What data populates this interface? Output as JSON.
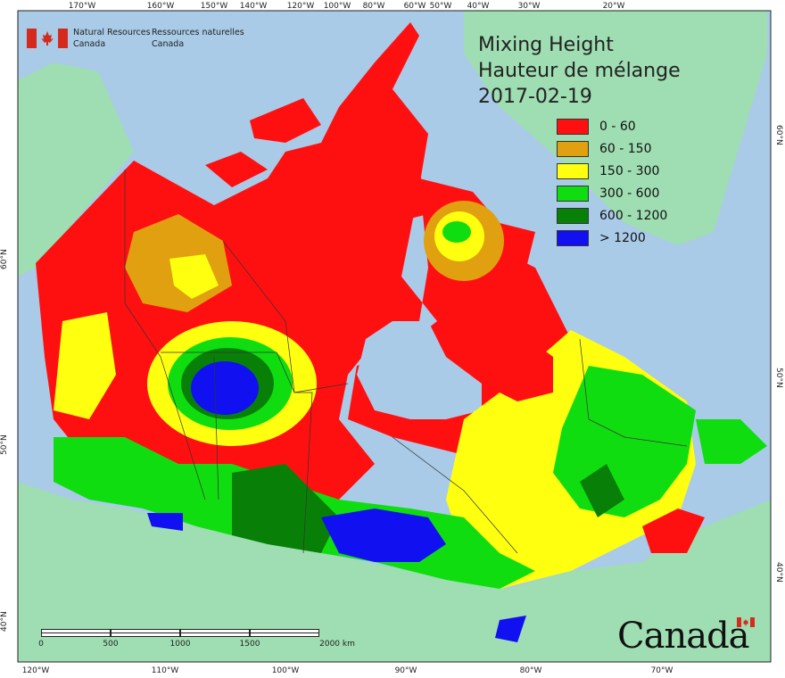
{
  "map": {
    "title_lines": [
      "Mixing Height",
      "Hauteur de mélange",
      "2017-02-19"
    ],
    "agency": {
      "english": [
        "Natural Resources",
        "Canada"
      ],
      "french": [
        "Ressources naturelles",
        "Canada"
      ]
    },
    "wordmark": "Canada",
    "legend": [
      {
        "label": "0 - 60",
        "color": "#ff1010"
      },
      {
        "label": "60 - 150",
        "color": "#e0a010"
      },
      {
        "label": "150 - 300",
        "color": "#ffff10"
      },
      {
        "label": "300 - 600",
        "color": "#10dd10"
      },
      {
        "label": "600 - 1200",
        "color": "#088008"
      },
      {
        "label": "> 1200",
        "color": "#1010f0"
      }
    ],
    "top_ticks": [
      "170°W",
      "160°W",
      "150°W",
      "140°W",
      "120°W",
      "100°W",
      "80°W",
      "60°W",
      "50°W",
      "40°W",
      "30°W",
      "20°W"
    ],
    "bottom_ticks": [
      "120°W",
      "110°W",
      "100°W",
      "90°W",
      "80°W",
      "70°W"
    ],
    "left_ticks": [
      "60°N",
      "50°N",
      "40°N"
    ],
    "right_ticks": [
      "60°N",
      "50°N",
      "40°N"
    ],
    "scalebar": {
      "labels": [
        "0",
        "500",
        "1000",
        "1500",
        "2000  km"
      ]
    },
    "colors": {
      "ocean": "#a9cbe8",
      "land": "#9fddb2",
      "border": "#333333"
    }
  }
}
